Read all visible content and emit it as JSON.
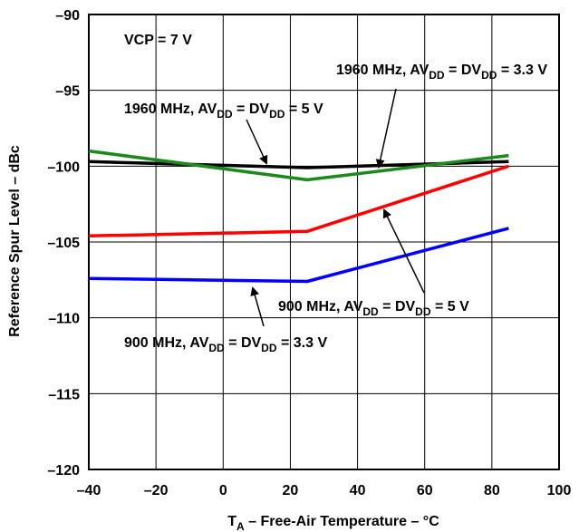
{
  "chart_data": {
    "type": "line",
    "xlabel": {
      "main": "T",
      "sub": "A",
      "rest": " – Free-Air Temperature – °C"
    },
    "ylabel": "Reference Spur Level – dBc",
    "xlim": [
      -40,
      100
    ],
    "ylim": [
      -120,
      -90
    ],
    "xticks": [
      "–40",
      "–20",
      "0",
      "20",
      "40",
      "60",
      "80",
      "100"
    ],
    "xtick_values": [
      -40,
      -20,
      0,
      20,
      40,
      60,
      80,
      100
    ],
    "yticks": [
      "–90",
      "–95",
      "–100",
      "–105",
      "–110",
      "–115",
      "–120"
    ],
    "ytick_values": [
      -90,
      -95,
      -100,
      -105,
      -110,
      -115,
      -120
    ],
    "grid": true,
    "series": [
      {
        "name": "1960 MHz, AVDD = DVDD = 5 V",
        "color": "#000000",
        "x": [
          -40,
          25,
          85
        ],
        "y": [
          -99.7,
          -100.1,
          -99.7
        ]
      },
      {
        "name": "1960 MHz, AVDD = DVDD = 3.3 V",
        "color": "#1a8a1a",
        "x": [
          -40,
          25,
          85
        ],
        "y": [
          -99.0,
          -100.9,
          -99.3
        ]
      },
      {
        "name": "900 MHz, AVDD = DVDD = 5 V",
        "color": "#ff0000",
        "x": [
          -40,
          25,
          85
        ],
        "y": [
          -104.6,
          -104.3,
          -100.0
        ]
      },
      {
        "name": "900 MHz, AVDD = DVDD = 3.3 V",
        "color": "#0000ff",
        "x": [
          -40,
          25,
          85
        ],
        "y": [
          -107.4,
          -107.6,
          -104.1
        ]
      }
    ],
    "annotations": [
      {
        "text": "VCP = 7 V"
      },
      {
        "parts": [
          [
            "1960 MHz, AV",
            ""
          ],
          [
            "DD",
            "sub"
          ],
          [
            " = DV",
            ""
          ],
          [
            "DD",
            "sub"
          ],
          [
            " = 3.3 V",
            ""
          ]
        ]
      },
      {
        "parts": [
          [
            "1960 MHz, AV",
            ""
          ],
          [
            "DD",
            "sub"
          ],
          [
            " = DV",
            ""
          ],
          [
            "DD",
            "sub"
          ],
          [
            " = 5 V",
            ""
          ]
        ]
      },
      {
        "parts": [
          [
            "900 MHz, AV",
            ""
          ],
          [
            "DD",
            "sub"
          ],
          [
            " = DV",
            ""
          ],
          [
            "DD",
            "sub"
          ],
          [
            " = 5 V",
            ""
          ]
        ]
      },
      {
        "parts": [
          [
            "900 MHz, AV",
            ""
          ],
          [
            "DD",
            "sub"
          ],
          [
            " = DV",
            ""
          ],
          [
            "DD",
            "sub"
          ],
          [
            " = 3.3 V",
            ""
          ]
        ]
      }
    ]
  }
}
